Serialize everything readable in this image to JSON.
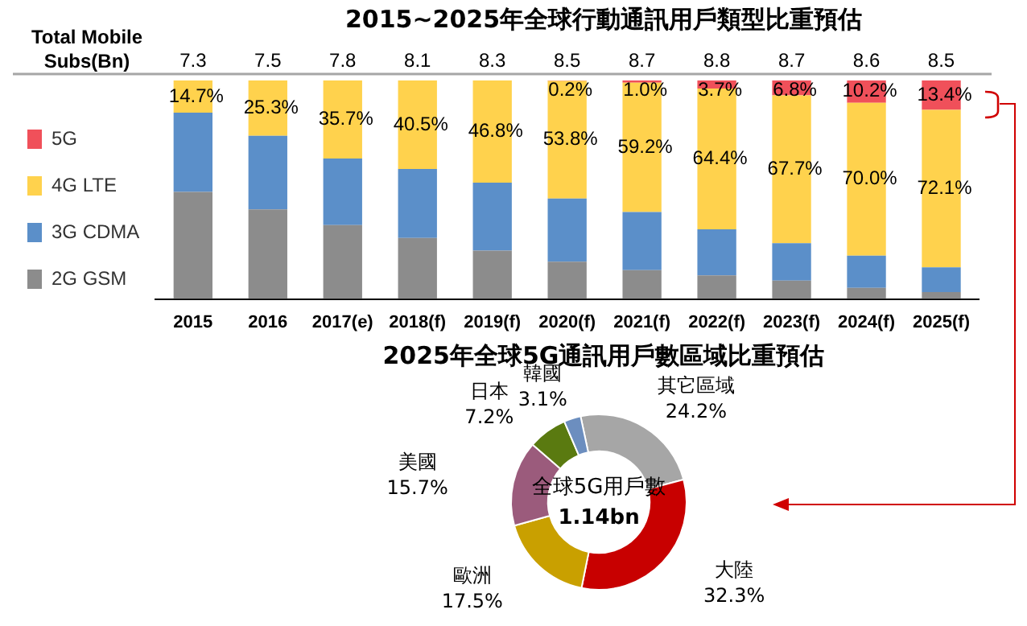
{
  "chart_data": [
    {
      "type": "bar",
      "title": "2015~2025年全球行動通訊用戶類型比重預估",
      "stacked": true,
      "legend": "left",
      "categories": [
        "2015",
        "2016",
        "2017(e)",
        "2018(f)",
        "2019(f)",
        "2020(f)",
        "2021(f)",
        "2022(f)",
        "2023(f)",
        "2024(f)",
        "2025(f)"
      ],
      "series": [
        {
          "name": "2G GSM",
          "color": "#8c8c8c",
          "values": [
            49.0,
            41.0,
            33.8,
            27.9,
            22.1,
            17.1,
            13.2,
            10.8,
            8.4,
            5.1,
            3.2
          ]
        },
        {
          "name": "3G CDMA",
          "color": "#5b8fc9",
          "values": [
            36.3,
            33.7,
            30.5,
            31.6,
            31.1,
            28.9,
            26.6,
            21.1,
            17.1,
            14.7,
            11.3
          ]
        },
        {
          "name": "4G LTE",
          "color": "#ffd24d",
          "values": [
            14.7,
            25.3,
            35.7,
            40.5,
            46.8,
            53.8,
            59.2,
            64.4,
            67.7,
            70.0,
            72.1
          ],
          "value_labels": [
            "14.7%",
            "25.3%",
            "35.7%",
            "40.5%",
            "46.8%",
            "53.8%",
            "59.2%",
            "64.4%",
            "67.7%",
            "70.0%",
            "72.1%"
          ]
        },
        {
          "name": "5G",
          "color": "#f0505a",
          "values": [
            0,
            0,
            0,
            0,
            0,
            0.2,
            1.0,
            3.7,
            6.8,
            10.2,
            13.4
          ],
          "value_labels": [
            null,
            null,
            null,
            null,
            null,
            "0.2%",
            "1.0%",
            "3.7%",
            "6.8%",
            "10.2%",
            "13.4%"
          ]
        }
      ],
      "annotations": [
        "Total Mobile Subs(Bn)",
        "7.3",
        "7.5",
        "7.8",
        "8.1",
        "8.3",
        "8.5",
        "8.7",
        "8.8",
        "8.7",
        "8.6",
        "8.5"
      ]
    },
    {
      "type": "donut",
      "title": "2025年全球5G通訊用戶數區域比重預估",
      "categories": [
        "其它區域",
        "大陸",
        "歐洲",
        "美國",
        "日本",
        "韓國"
      ],
      "values": [
        24.2,
        32.3,
        17.5,
        15.7,
        7.2,
        3.1
      ],
      "value_labels": [
        "24.2%",
        "32.3%",
        "17.5%",
        "15.7%",
        "7.2%",
        "3.1%"
      ],
      "colors": [
        "#a6a6a6",
        "#c80000",
        "#c9a000",
        "#9b5b7c",
        "#5a7a10",
        "#6c8ebf"
      ],
      "annotations": [
        "全球5G用戶數",
        "1.14bn"
      ]
    }
  ]
}
